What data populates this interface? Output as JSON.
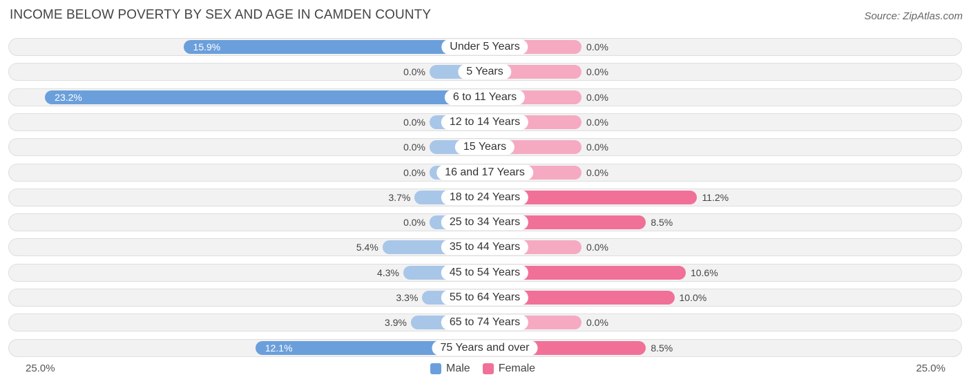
{
  "chart_data": {
    "type": "bar",
    "orientation": "horizontal-diverging",
    "title": "INCOME BELOW POVERTY BY SEX AND AGE IN CAMDEN COUNTY",
    "source": "Source: ZipAtlas.com",
    "categories": [
      "Under 5 Years",
      "5 Years",
      "6 to 11 Years",
      "12 to 14 Years",
      "15 Years",
      "16 and 17 Years",
      "18 to 24 Years",
      "25 to 34 Years",
      "35 to 44 Years",
      "45 to 54 Years",
      "55 to 64 Years",
      "65 to 74 Years",
      "75 Years and over"
    ],
    "series": [
      {
        "name": "Male",
        "values": [
          15.9,
          0.0,
          23.2,
          0.0,
          0.0,
          0.0,
          3.7,
          0.0,
          5.4,
          4.3,
          3.3,
          3.9,
          12.1
        ],
        "labels": [
          "15.9%",
          "0.0%",
          "23.2%",
          "0.0%",
          "0.0%",
          "0.0%",
          "3.7%",
          "0.0%",
          "5.4%",
          "4.3%",
          "3.3%",
          "3.9%",
          "12.1%"
        ]
      },
      {
        "name": "Female",
        "values": [
          0.0,
          0.0,
          0.0,
          0.0,
          0.0,
          0.0,
          11.2,
          8.5,
          0.0,
          10.6,
          10.0,
          0.0,
          8.5
        ],
        "labels": [
          "0.0%",
          "0.0%",
          "0.0%",
          "0.0%",
          "0.0%",
          "0.0%",
          "11.2%",
          "8.5%",
          "0.0%",
          "10.6%",
          "10.0%",
          "0.0%",
          "8.5%"
        ]
      }
    ],
    "xlim": [
      -25,
      25
    ],
    "axis_min_label": "25.0%",
    "axis_max_label": "25.0%",
    "legend": [
      {
        "name": "Male",
        "color": "#6a9fdb"
      },
      {
        "name": "Female",
        "color": "#f07098"
      }
    ]
  }
}
